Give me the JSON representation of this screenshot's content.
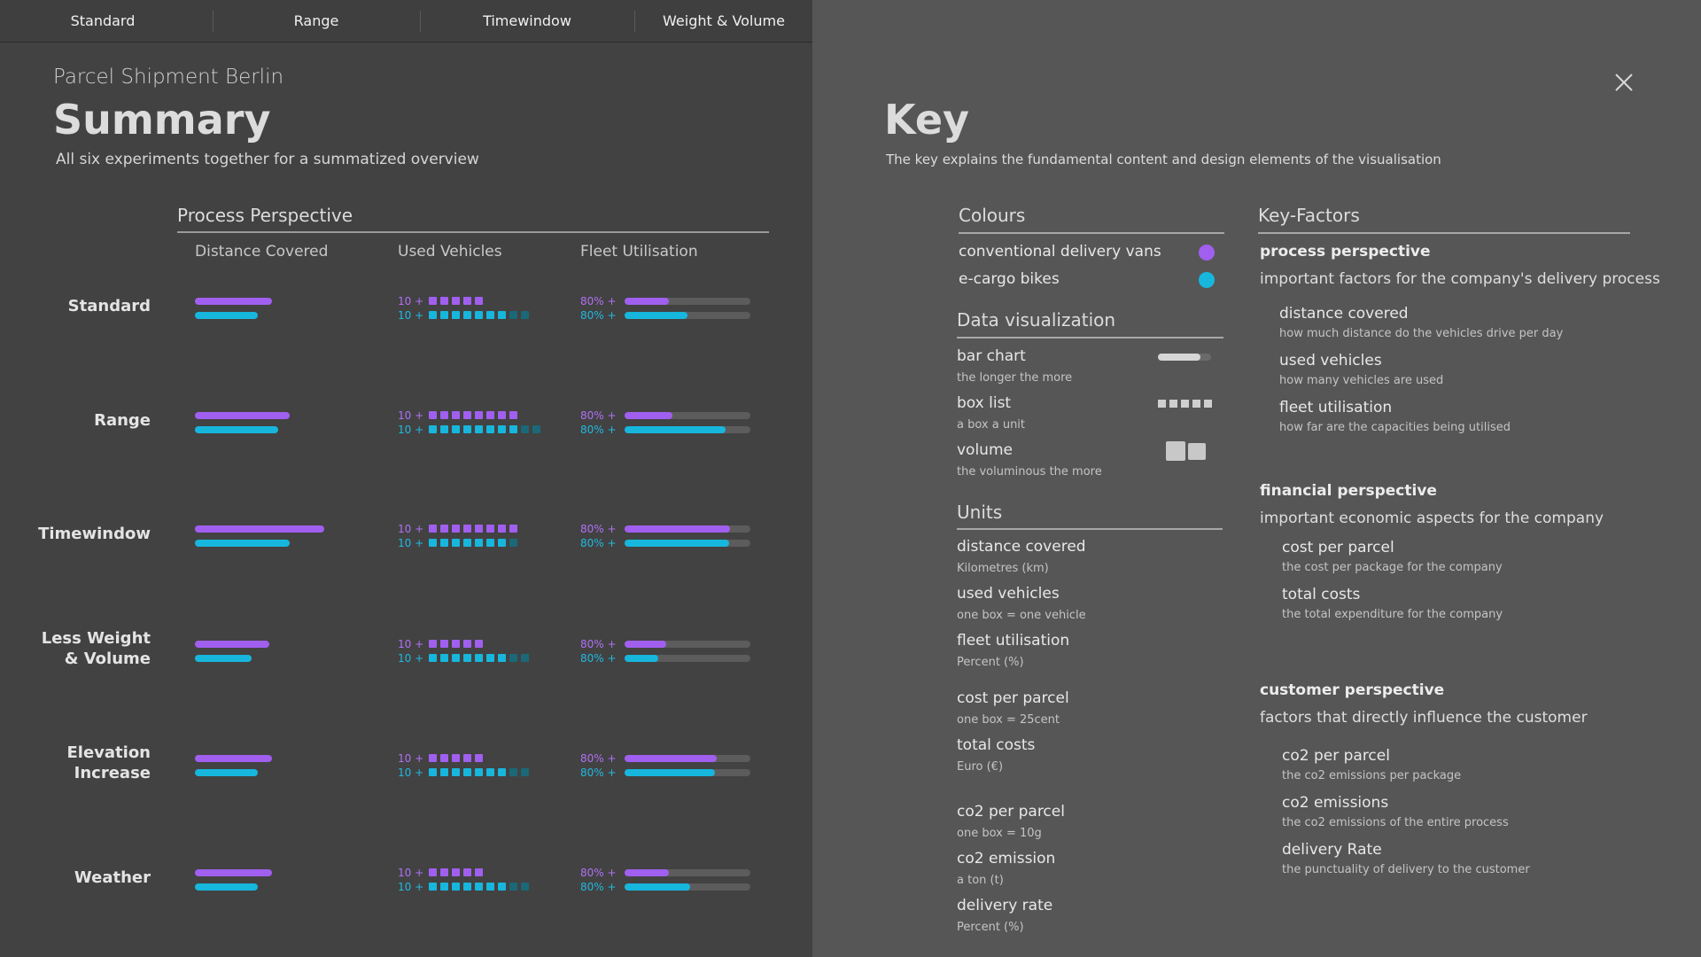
{
  "nav": {
    "tabs": [
      "Standard",
      "Range",
      "Timewindow",
      "Weight & Volume"
    ]
  },
  "summary": {
    "location": "Parcel Shipment Berlin",
    "title": "Summary",
    "description": "All six experiments together for a summatized overview",
    "perspective_title": "Process Perspective",
    "columns": [
      "Distance Covered",
      "Used Vehicles",
      "Fleet Utilisation"
    ],
    "vehicle_label": "10 +",
    "utilisation_label": "80% +",
    "scenarios": [
      {
        "label_lines": [
          "Standard"
        ],
        "distance": [
          0.49,
          0.4
        ],
        "vehicles": [
          5,
          7
        ],
        "vehicles_extra": [
          0,
          2
        ],
        "utilisation": [
          0.35,
          0.5
        ]
      },
      {
        "label_lines": [
          "Range"
        ],
        "distance": [
          0.6,
          0.53
        ],
        "vehicles": [
          8,
          8
        ],
        "vehicles_extra": [
          0,
          2
        ],
        "utilisation": [
          0.38,
          0.8
        ]
      },
      {
        "label_lines": [
          "Timewindow"
        ],
        "distance": [
          0.82,
          0.6
        ],
        "vehicles": [
          8,
          7
        ],
        "vehicles_extra": [
          0,
          1
        ],
        "utilisation": [
          0.84,
          0.83
        ]
      },
      {
        "label_lines": [
          "Less Weight",
          "& Volume"
        ],
        "distance": [
          0.47,
          0.36
        ],
        "vehicles": [
          5,
          7
        ],
        "vehicles_extra": [
          0,
          2
        ],
        "utilisation": [
          0.33,
          0.27
        ]
      },
      {
        "label_lines": [
          "Elevation",
          "Increase"
        ],
        "distance": [
          0.49,
          0.4
        ],
        "vehicles": [
          5,
          7
        ],
        "vehicles_extra": [
          0,
          2
        ],
        "utilisation": [
          0.73,
          0.72
        ]
      },
      {
        "label_lines": [
          "Weather"
        ],
        "distance": [
          0.49,
          0.4
        ],
        "vehicles": [
          5,
          7
        ],
        "vehicles_extra": [
          0,
          2
        ],
        "utilisation": [
          0.35,
          0.52
        ]
      }
    ]
  },
  "key": {
    "title": "Key",
    "description": "The key explains the fundamental content and design elements of the visualisation",
    "colours_title": "Colours",
    "colours": [
      {
        "label": "conventional delivery vans",
        "color": "#a15ff0"
      },
      {
        "label": "e-cargo bikes",
        "color": "#17b6dd"
      }
    ],
    "dataviz_title": "Data visualization",
    "dataviz": [
      {
        "label": "bar chart",
        "sub": "the longer the more",
        "icon": "bar-chart-icon"
      },
      {
        "label": "box list",
        "sub": "a box a unit",
        "icon": "box-list-icon"
      },
      {
        "label": "volume",
        "sub": "the voluminous the more",
        "icon": "volume-icon"
      }
    ],
    "units_title": "Units",
    "units": [
      {
        "label": "distance covered",
        "sub": "Kilometres (km)"
      },
      {
        "label": "used vehicles",
        "sub": "one box = one vehicle"
      },
      {
        "label": "fleet utilisation",
        "sub": "Percent (%)"
      },
      {
        "label": "cost per parcel",
        "sub": "one box = 25cent"
      },
      {
        "label": "total costs",
        "sub": "Euro (€)"
      },
      {
        "label": "co2 per parcel",
        "sub": "one box = 10g"
      },
      {
        "label": "co2 emission",
        "sub": "a ton (t)"
      },
      {
        "label": "delivery rate",
        "sub": "Percent (%)"
      }
    ],
    "factors_title": "Key-Factors",
    "perspectives": [
      {
        "name": "process perspective",
        "desc": "important factors for the company's delivery process",
        "items": [
          {
            "label": "distance covered",
            "sub": "how much distance do the vehicles drive per day"
          },
          {
            "label": "used vehicles",
            "sub": "how many vehicles are used"
          },
          {
            "label": "fleet utilisation",
            "sub": "how far are the capacities being utilised"
          }
        ]
      },
      {
        "name": "financial perspective",
        "desc": "important economic aspects for the company",
        "items": [
          {
            "label": "cost per parcel",
            "sub": "the cost per package for the company"
          },
          {
            "label": "total costs",
            "sub": "the total expenditure for the company"
          }
        ]
      },
      {
        "name": "customer perspective",
        "desc": "factors that directly influence the customer",
        "items": [
          {
            "label": "co2 per parcel",
            "sub": "the co2 emissions per package"
          },
          {
            "label": "co2 emissions",
            "sub": "the co2 emissions of the entire process"
          },
          {
            "label": "delivery Rate",
            "sub": "the punctuality of delivery to the customer"
          }
        ]
      }
    ]
  }
}
